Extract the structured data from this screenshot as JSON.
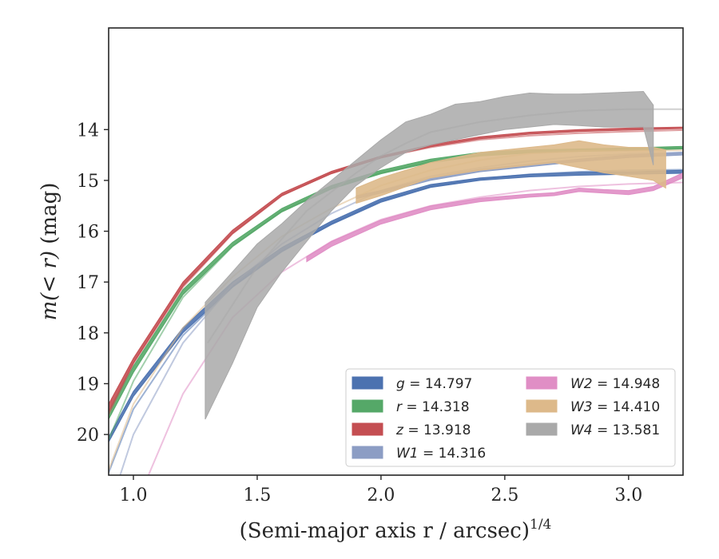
{
  "chart_data": {
    "type": "line",
    "xlabel": "(Semi-major axis r / arcsec)",
    "xlabel_exponent": "1/4",
    "ylabel_prefix": "m(< r)",
    "ylabel_suffix": " (mag)",
    "xlim": [
      0.9,
      3.22
    ],
    "ylim": [
      20.8,
      12.0
    ],
    "y_inverted": true,
    "xticks": [
      1.0,
      1.5,
      2.0,
      2.5,
      3.0
    ],
    "xtick_labels": [
      "1.0",
      "1.5",
      "2.0",
      "2.5",
      "3.0"
    ],
    "yticks": [
      14,
      15,
      16,
      17,
      18,
      19,
      20
    ],
    "ytick_labels": [
      "14",
      "15",
      "16",
      "17",
      "18",
      "19",
      "20"
    ],
    "grid": false,
    "legend_position": "lower-right",
    "series": [
      {
        "name": "g = 14.797",
        "label_var": "g",
        "label_val": "14.797",
        "color": "#4c72b0",
        "model": {
          "x": [
            0.9,
            1.0,
            1.2,
            1.4,
            1.6,
            1.8,
            2.0,
            2.2,
            2.4,
            2.6,
            2.8,
            3.0,
            3.22
          ],
          "y": [
            20.75,
            19.5,
            18.05,
            17.1,
            16.4,
            15.85,
            15.4,
            15.12,
            14.97,
            14.88,
            14.83,
            14.8,
            14.79
          ]
        },
        "data": {
          "x": [
            0.9,
            1.0,
            1.2,
            1.4,
            1.6,
            1.8,
            2.0,
            2.2,
            2.4,
            2.6,
            2.8,
            3.0,
            3.22
          ],
          "lower": [
            20.05,
            19.15,
            17.9,
            17.0,
            16.32,
            15.8,
            15.36,
            15.08,
            14.95,
            14.88,
            14.84,
            14.83,
            14.8
          ],
          "upper": [
            20.15,
            19.25,
            18.0,
            17.1,
            16.4,
            15.87,
            15.43,
            15.14,
            15.0,
            14.93,
            14.9,
            14.88,
            14.86
          ]
        }
      },
      {
        "name": "r = 14.318",
        "label_var": "r",
        "label_val": "14.318",
        "color": "#55a868",
        "model": {
          "x": [
            0.9,
            1.0,
            1.2,
            1.4,
            1.6,
            1.8,
            2.0,
            2.2,
            2.4,
            2.6,
            2.8,
            3.0,
            3.22
          ],
          "y": [
            20.1,
            18.95,
            17.3,
            16.3,
            15.6,
            15.15,
            14.85,
            14.63,
            14.5,
            14.43,
            14.4,
            14.38,
            14.36
          ]
        },
        "data": {
          "x": [
            0.9,
            1.0,
            1.2,
            1.4,
            1.6,
            1.8,
            2.0,
            2.2,
            2.4,
            2.6,
            2.8,
            3.0,
            3.22
          ],
          "lower": [
            19.55,
            18.65,
            17.15,
            16.22,
            15.55,
            15.1,
            14.8,
            14.58,
            14.45,
            14.4,
            14.38,
            14.36,
            14.33
          ],
          "upper": [
            19.7,
            18.78,
            17.25,
            16.3,
            15.62,
            15.17,
            14.87,
            14.65,
            14.52,
            14.46,
            14.43,
            14.41,
            14.38
          ]
        }
      },
      {
        "name": "z = 13.918",
        "label_var": "z",
        "label_val": "13.918",
        "color": "#c44e52",
        "model": {
          "x": [
            0.9,
            1.0,
            1.2,
            1.4,
            1.6,
            1.8,
            2.0,
            2.2,
            2.4,
            2.6,
            2.8,
            3.0,
            3.22
          ],
          "y": [
            19.6,
            18.6,
            17.1,
            16.05,
            15.3,
            14.85,
            14.55,
            14.35,
            14.2,
            14.12,
            14.07,
            14.04,
            14.01
          ]
        },
        "data": {
          "x": [
            0.9,
            1.0,
            1.2,
            1.4,
            1.6,
            1.8,
            2.0,
            2.2,
            2.4,
            2.6,
            2.8,
            3.0,
            3.22
          ],
          "lower": [
            19.4,
            18.5,
            17.0,
            15.98,
            15.25,
            14.82,
            14.52,
            14.3,
            14.14,
            14.05,
            14.0,
            13.97,
            13.95
          ],
          "upper": [
            19.55,
            18.6,
            17.08,
            16.05,
            15.3,
            14.87,
            14.56,
            14.34,
            14.18,
            14.09,
            14.04,
            14.01,
            13.98
          ]
        }
      },
      {
        "name": "W1 = 14.316",
        "label_var": "W1",
        "label_val": "14.316",
        "color": "#8c9dc4",
        "model": {
          "x": [
            0.9,
            1.0,
            1.2,
            1.4,
            1.6,
            1.8,
            2.0,
            2.2,
            2.4,
            2.6,
            2.8,
            3.0,
            3.22
          ],
          "y": [
            21.5,
            20.0,
            18.2,
            17.05,
            16.25,
            15.65,
            15.2,
            14.92,
            14.75,
            14.62,
            14.53,
            14.48,
            14.45
          ]
        },
        "data": {
          "x": [
            1.9,
            2.0,
            2.2,
            2.4,
            2.6,
            2.8,
            3.0,
            3.22
          ],
          "lower": [
            15.3,
            15.2,
            14.95,
            14.78,
            14.68,
            14.58,
            14.5,
            14.45
          ],
          "upper": [
            15.36,
            15.25,
            15.0,
            14.83,
            14.73,
            14.63,
            14.55,
            14.5
          ]
        }
      },
      {
        "name": "W2 = 14.948",
        "label_var": "W2",
        "label_val": "14.948",
        "color": "#e08ec5",
        "model": {
          "x": [
            0.9,
            1.0,
            1.2,
            1.4,
            1.6,
            1.8,
            2.0,
            2.2,
            2.4,
            2.6,
            2.8,
            3.0,
            3.22
          ],
          "y": [
            22.8,
            21.5,
            19.2,
            17.7,
            16.8,
            16.2,
            15.77,
            15.5,
            15.33,
            15.2,
            15.12,
            15.07,
            15.04
          ]
        },
        "data": {
          "x": [
            1.7,
            1.8,
            2.0,
            2.2,
            2.4,
            2.6,
            2.7,
            2.8,
            2.9,
            3.0,
            3.1,
            3.22
          ],
          "lower": [
            16.5,
            16.2,
            15.78,
            15.5,
            15.35,
            15.27,
            15.24,
            15.15,
            15.18,
            15.2,
            15.12,
            14.85
          ],
          "upper": [
            16.6,
            16.3,
            15.86,
            15.58,
            15.42,
            15.33,
            15.3,
            15.22,
            15.25,
            15.28,
            15.2,
            14.95
          ]
        }
      },
      {
        "name": "W3 = 14.410",
        "label_var": "W3",
        "label_val": "14.410",
        "color": "#ddb98a",
        "model": {
          "x": [
            0.9,
            1.0,
            1.2,
            1.4,
            1.6,
            1.8,
            2.0,
            2.2,
            2.4,
            2.6,
            2.8,
            3.0,
            3.22
          ],
          "y": [
            20.7,
            19.4,
            17.9,
            16.9,
            16.1,
            15.55,
            15.1,
            14.8,
            14.6,
            14.47,
            14.42,
            14.41,
            14.41
          ]
        },
        "data": {
          "x": [
            1.9,
            2.0,
            2.2,
            2.4,
            2.6,
            2.7,
            2.8,
            2.9,
            3.0,
            3.1,
            3.15
          ],
          "lower": [
            15.15,
            14.95,
            14.65,
            14.45,
            14.35,
            14.3,
            14.22,
            14.3,
            14.35,
            14.35,
            14.4
          ],
          "upper": [
            15.45,
            15.3,
            14.95,
            14.8,
            14.7,
            14.65,
            14.75,
            14.85,
            14.92,
            15.0,
            15.15
          ]
        }
      },
      {
        "name": "W4 = 13.581",
        "label_var": "W4",
        "label_val": "13.581",
        "color": "#a9a9a9",
        "model": {
          "x": [
            1.3,
            1.5,
            1.7,
            1.9,
            2.0,
            2.1,
            2.2,
            2.4,
            2.6,
            2.8,
            3.0,
            3.22
          ],
          "y": [
            18.2,
            16.7,
            15.6,
            14.85,
            14.52,
            14.27,
            14.05,
            13.85,
            13.72,
            13.63,
            13.6,
            13.6
          ]
        },
        "data": {
          "x": [
            1.29,
            1.4,
            1.5,
            1.6,
            1.7,
            1.8,
            1.9,
            2.0,
            2.1,
            2.2,
            2.3,
            2.4,
            2.5,
            2.6,
            2.7,
            2.8,
            2.9,
            3.0,
            3.06,
            3.1
          ],
          "lower": [
            17.4,
            16.8,
            16.25,
            15.85,
            15.4,
            15.0,
            14.6,
            14.2,
            13.85,
            13.7,
            13.5,
            13.45,
            13.35,
            13.28,
            13.3,
            13.3,
            13.28,
            13.26,
            13.25,
            13.52
          ],
          "upper": [
            19.7,
            18.6,
            17.5,
            16.8,
            16.2,
            15.6,
            15.1,
            14.75,
            14.45,
            14.3,
            14.2,
            14.1,
            14.0,
            13.95,
            13.9,
            13.92,
            13.95,
            13.95,
            13.95,
            14.7
          ]
        }
      }
    ]
  }
}
